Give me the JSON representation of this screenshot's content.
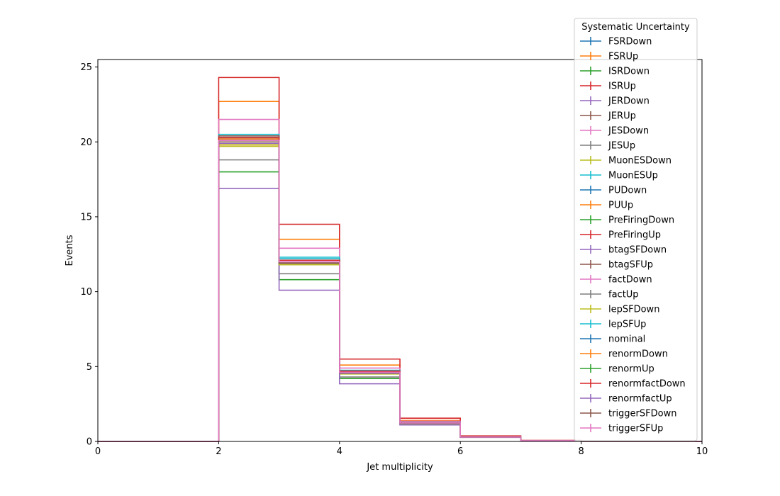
{
  "chart_data": {
    "type": "step",
    "xlabel": "Jet multiplicity",
    "ylabel": "Events",
    "xlim": [
      0,
      10
    ],
    "ylim": [
      0,
      25.5
    ],
    "x_ticks": [
      0,
      2,
      4,
      6,
      8,
      10
    ],
    "y_ticks": [
      0,
      5,
      10,
      15,
      20,
      25
    ],
    "grid": false,
    "legend": {
      "title": "Systematic Uncertainty",
      "placement": "upper-right"
    },
    "bin_edges": [
      0,
      1,
      2,
      3,
      4,
      5,
      6,
      7,
      8,
      9,
      10
    ],
    "series": [
      {
        "name": "FSRDown",
        "color": "#1f77b4",
        "values": [
          0,
          0,
          20.2,
          12.0,
          4.7,
          1.2,
          0.3,
          0.05,
          0,
          0
        ]
      },
      {
        "name": "FSRUp",
        "color": "#ff7f0e",
        "values": [
          0,
          0,
          22.7,
          13.5,
          5.1,
          1.4,
          0.33,
          0.06,
          0,
          0
        ]
      },
      {
        "name": "ISRDown",
        "color": "#2ca02c",
        "values": [
          0,
          0,
          18.0,
          10.8,
          4.2,
          1.15,
          0.28,
          0.05,
          0,
          0
        ]
      },
      {
        "name": "ISRUp",
        "color": "#d62728",
        "values": [
          0,
          0,
          24.3,
          14.5,
          5.5,
          1.55,
          0.37,
          0.07,
          0,
          0
        ]
      },
      {
        "name": "JERDown",
        "color": "#9467bd",
        "values": [
          0,
          0,
          20.1,
          11.9,
          4.6,
          1.25,
          0.3,
          0.05,
          0,
          0
        ]
      },
      {
        "name": "JERUp",
        "color": "#8c564b",
        "values": [
          0,
          0,
          20.3,
          12.0,
          4.65,
          1.25,
          0.3,
          0.05,
          0,
          0
        ]
      },
      {
        "name": "JESDown",
        "color": "#e377c2",
        "values": [
          0,
          0,
          21.5,
          12.9,
          4.9,
          1.35,
          0.32,
          0.06,
          0,
          0
        ]
      },
      {
        "name": "JESUp",
        "color": "#7f7f7f",
        "values": [
          0,
          0,
          18.8,
          11.2,
          4.3,
          1.15,
          0.28,
          0.05,
          0,
          0
        ]
      },
      {
        "name": "MuonESDown",
        "color": "#bcbd22",
        "values": [
          0,
          0,
          19.7,
          11.8,
          4.5,
          1.2,
          0.29,
          0.05,
          0,
          0
        ]
      },
      {
        "name": "MuonESUp",
        "color": "#17becf",
        "values": [
          0,
          0,
          20.5,
          12.3,
          4.75,
          1.28,
          0.31,
          0.05,
          0,
          0
        ]
      },
      {
        "name": "PUDown",
        "color": "#1f77b4",
        "values": [
          0,
          0,
          20.2,
          12.2,
          4.7,
          1.25,
          0.3,
          0.05,
          0,
          0
        ]
      },
      {
        "name": "PUUp",
        "color": "#ff7f0e",
        "values": [
          0,
          0,
          19.8,
          11.9,
          4.6,
          1.22,
          0.3,
          0.05,
          0,
          0
        ]
      },
      {
        "name": "PreFiringDown",
        "color": "#2ca02c",
        "values": [
          0,
          0,
          20.1,
          12.1,
          4.65,
          1.25,
          0.3,
          0.05,
          0,
          0
        ]
      },
      {
        "name": "PreFiringUp",
        "color": "#d62728",
        "values": [
          0,
          0,
          20.0,
          12.0,
          4.6,
          1.24,
          0.3,
          0.05,
          0,
          0
        ]
      },
      {
        "name": "btagSFDown",
        "color": "#9467bd",
        "values": [
          0,
          0,
          16.9,
          10.1,
          3.85,
          1.1,
          0.27,
          0.05,
          0,
          0
        ]
      },
      {
        "name": "btagSFUp",
        "color": "#8c564b",
        "values": [
          0,
          0,
          20.4,
          12.1,
          4.7,
          1.26,
          0.3,
          0.05,
          0,
          0
        ]
      },
      {
        "name": "factDown",
        "color": "#e377c2",
        "values": [
          0,
          0,
          20.2,
          12.0,
          4.65,
          1.25,
          0.3,
          0.05,
          0,
          0
        ]
      },
      {
        "name": "factUp",
        "color": "#7f7f7f",
        "values": [
          0,
          0,
          20.0,
          11.9,
          4.55,
          1.22,
          0.29,
          0.05,
          0,
          0
        ]
      },
      {
        "name": "lepSFDown",
        "color": "#bcbd22",
        "values": [
          0,
          0,
          19.8,
          11.8,
          4.55,
          1.22,
          0.29,
          0.05,
          0,
          0
        ]
      },
      {
        "name": "lepSFUp",
        "color": "#17becf",
        "values": [
          0,
          0,
          20.3,
          12.2,
          4.7,
          1.26,
          0.3,
          0.05,
          0,
          0
        ]
      },
      {
        "name": "nominal",
        "color": "#1f77b4",
        "values": [
          0,
          0,
          20.1,
          12.0,
          4.6,
          1.24,
          0.3,
          0.05,
          0,
          0
        ]
      },
      {
        "name": "renormDown",
        "color": "#ff7f0e",
        "values": [
          0,
          0,
          20.2,
          12.0,
          4.65,
          1.25,
          0.3,
          0.05,
          0,
          0
        ]
      },
      {
        "name": "renormUp",
        "color": "#2ca02c",
        "values": [
          0,
          0,
          20.0,
          11.9,
          4.6,
          1.23,
          0.3,
          0.05,
          0,
          0
        ]
      },
      {
        "name": "renormfactDown",
        "color": "#d62728",
        "values": [
          0,
          0,
          20.3,
          12.1,
          4.7,
          1.26,
          0.3,
          0.05,
          0,
          0
        ]
      },
      {
        "name": "renormfactUp",
        "color": "#9467bd",
        "values": [
          0,
          0,
          19.9,
          11.9,
          4.55,
          1.22,
          0.29,
          0.05,
          0,
          0
        ]
      },
      {
        "name": "triggerSFDown",
        "color": "#8c564b",
        "values": [
          0,
          0,
          20.0,
          11.9,
          4.6,
          1.23,
          0.3,
          0.05,
          0,
          0
        ]
      },
      {
        "name": "triggerSFUp",
        "color": "#e377c2",
        "values": [
          0,
          0,
          20.1,
          12.0,
          4.62,
          1.24,
          0.3,
          0.05,
          0,
          0
        ]
      }
    ]
  }
}
